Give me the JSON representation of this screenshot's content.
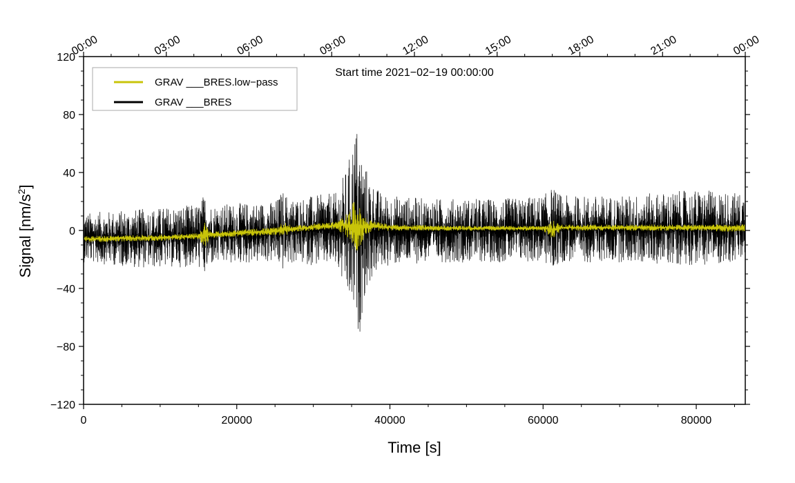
{
  "chart_data": {
    "type": "line",
    "xlabel": "Time [s]",
    "ylabel_main": "Signal [nm/s",
    "ylabel_sup": "2",
    "ylabel_close": "]",
    "xlim": [
      0,
      86400
    ],
    "ylim": [
      -120,
      120
    ],
    "x_ticks": [
      {
        "value": 0,
        "label": "0"
      },
      {
        "value": 20000,
        "label": "20000"
      },
      {
        "value": 40000,
        "label": "40000"
      },
      {
        "value": 60000,
        "label": "60000"
      },
      {
        "value": 80000,
        "label": "80000"
      }
    ],
    "y_ticks": [
      {
        "value": -120,
        "label": "−120"
      },
      {
        "value": -80,
        "label": "−80"
      },
      {
        "value": -40,
        "label": "−40"
      },
      {
        "value": 0,
        "label": "0"
      },
      {
        "value": 40,
        "label": "40"
      },
      {
        "value": 80,
        "label": "80"
      },
      {
        "value": 120,
        "label": "120"
      }
    ],
    "top_ticks": [
      {
        "value": 0,
        "label": "00:00"
      },
      {
        "value": 10800,
        "label": "03:00"
      },
      {
        "value": 21600,
        "label": "06:00"
      },
      {
        "value": 32400,
        "label": "09:00"
      },
      {
        "value": 43200,
        "label": "12:00"
      },
      {
        "value": 54000,
        "label": "15:00"
      },
      {
        "value": 64800,
        "label": "18:00"
      },
      {
        "value": 75600,
        "label": "21:00"
      },
      {
        "value": 86400,
        "label": "00:00"
      }
    ],
    "annotation": "Start time 2021−02−19 00:00:00",
    "grid": false,
    "legend_position": "top-left",
    "series": [
      {
        "name": "GRAV ___BRES.low−pass",
        "color": "#c8c40a",
        "envelope": {
          "x": [
            0,
            10000,
            15000,
            15800,
            16600,
            25000,
            26200,
            27200,
            33000,
            34500,
            35500,
            36200,
            37000,
            38000,
            40000,
            50000,
            60000,
            61300,
            62500,
            70000,
            80000,
            86400
          ],
          "upper": [
            -4,
            -3,
            -2,
            6,
            -1,
            2,
            6,
            3,
            6,
            12,
            22,
            14,
            8,
            6,
            4,
            3,
            3,
            7,
            4,
            4,
            4,
            4
          ],
          "lower": [
            -8,
            -7,
            -6,
            -12,
            -5,
            -3,
            -4,
            -1,
            1,
            -5,
            -16,
            -10,
            -2,
            0,
            0,
            0,
            0,
            -6,
            0,
            0,
            0,
            -1
          ]
        }
      },
      {
        "name": "GRAV ___BRES",
        "color": "#000000",
        "envelope": {
          "x": [
            0,
            8000,
            15000,
            15800,
            16500,
            25000,
            26000,
            27000,
            33000,
            34500,
            35600,
            36000,
            36500,
            37500,
            39000,
            45000,
            55000,
            60000,
            61200,
            62500,
            70000,
            80000,
            86400
          ],
          "upper": [
            12,
            15,
            18,
            26,
            18,
            20,
            28,
            22,
            26,
            45,
            75,
            65,
            50,
            35,
            25,
            22,
            22,
            24,
            30,
            24,
            24,
            28,
            26
          ],
          "lower": [
            -22,
            -26,
            -25,
            -33,
            -24,
            -22,
            -28,
            -23,
            -25,
            -48,
            -65,
            -75,
            -50,
            -35,
            -25,
            -22,
            -22,
            -22,
            -28,
            -22,
            -22,
            -24,
            -22
          ]
        }
      }
    ]
  }
}
